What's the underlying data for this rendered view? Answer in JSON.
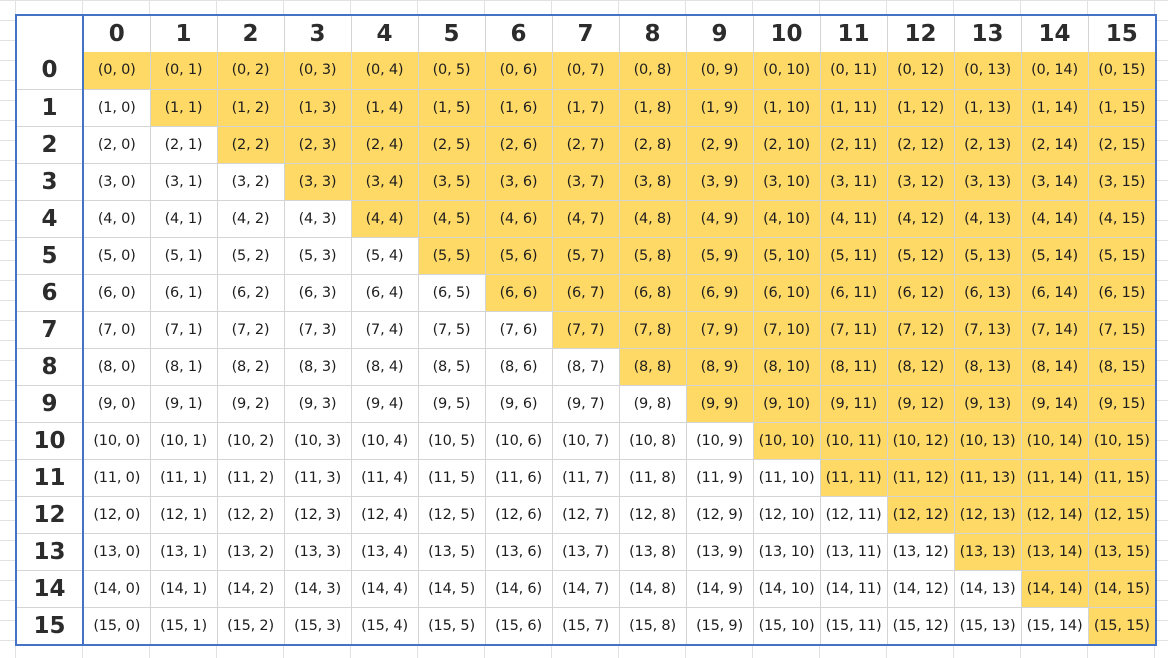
{
  "sheet": {
    "corner_label": "",
    "column_headers": [
      "0",
      "1",
      "2",
      "3",
      "4",
      "5",
      "6",
      "7",
      "8",
      "9",
      "10",
      "11",
      "12",
      "13",
      "14",
      "15"
    ],
    "rows": [
      {
        "header": "0",
        "cells": [
          "(0, 0)",
          "(0, 1)",
          "(0, 2)",
          "(0, 3)",
          "(0, 4)",
          "(0, 5)",
          "(0, 6)",
          "(0, 7)",
          "(0, 8)",
          "(0, 9)",
          "(0, 10)",
          "(0, 11)",
          "(0, 12)",
          "(0, 13)",
          "(0, 14)",
          "(0, 15)"
        ]
      },
      {
        "header": "1",
        "cells": [
          "(1, 0)",
          "(1, 1)",
          "(1, 2)",
          "(1, 3)",
          "(1, 4)",
          "(1, 5)",
          "(1, 6)",
          "(1, 7)",
          "(1, 8)",
          "(1, 9)",
          "(1, 10)",
          "(1, 11)",
          "(1, 12)",
          "(1, 13)",
          "(1, 14)",
          "(1, 15)"
        ]
      },
      {
        "header": "2",
        "cells": [
          "(2, 0)",
          "(2, 1)",
          "(2, 2)",
          "(2, 3)",
          "(2, 4)",
          "(2, 5)",
          "(2, 6)",
          "(2, 7)",
          "(2, 8)",
          "(2, 9)",
          "(2, 10)",
          "(2, 11)",
          "(2, 12)",
          "(2, 13)",
          "(2, 14)",
          "(2, 15)"
        ]
      },
      {
        "header": "3",
        "cells": [
          "(3, 0)",
          "(3, 1)",
          "(3, 2)",
          "(3, 3)",
          "(3, 4)",
          "(3, 5)",
          "(3, 6)",
          "(3, 7)",
          "(3, 8)",
          "(3, 9)",
          "(3, 10)",
          "(3, 11)",
          "(3, 12)",
          "(3, 13)",
          "(3, 14)",
          "(3, 15)"
        ]
      },
      {
        "header": "4",
        "cells": [
          "(4, 0)",
          "(4, 1)",
          "(4, 2)",
          "(4, 3)",
          "(4, 4)",
          "(4, 5)",
          "(4, 6)",
          "(4, 7)",
          "(4, 8)",
          "(4, 9)",
          "(4, 10)",
          "(4, 11)",
          "(4, 12)",
          "(4, 13)",
          "(4, 14)",
          "(4, 15)"
        ]
      },
      {
        "header": "5",
        "cells": [
          "(5, 0)",
          "(5, 1)",
          "(5, 2)",
          "(5, 3)",
          "(5, 4)",
          "(5, 5)",
          "(5, 6)",
          "(5, 7)",
          "(5, 8)",
          "(5, 9)",
          "(5, 10)",
          "(5, 11)",
          "(5, 12)",
          "(5, 13)",
          "(5, 14)",
          "(5, 15)"
        ]
      },
      {
        "header": "6",
        "cells": [
          "(6, 0)",
          "(6, 1)",
          "(6, 2)",
          "(6, 3)",
          "(6, 4)",
          "(6, 5)",
          "(6, 6)",
          "(6, 7)",
          "(6, 8)",
          "(6, 9)",
          "(6, 10)",
          "(6, 11)",
          "(6, 12)",
          "(6, 13)",
          "(6, 14)",
          "(6, 15)"
        ]
      },
      {
        "header": "7",
        "cells": [
          "(7, 0)",
          "(7, 1)",
          "(7, 2)",
          "(7, 3)",
          "(7, 4)",
          "(7, 5)",
          "(7, 6)",
          "(7, 7)",
          "(7, 8)",
          "(7, 9)",
          "(7, 10)",
          "(7, 11)",
          "(7, 12)",
          "(7, 13)",
          "(7, 14)",
          "(7, 15)"
        ]
      },
      {
        "header": "8",
        "cells": [
          "(8, 0)",
          "(8, 1)",
          "(8, 2)",
          "(8, 3)",
          "(8, 4)",
          "(8, 5)",
          "(8, 6)",
          "(8, 7)",
          "(8, 8)",
          "(8, 9)",
          "(8, 10)",
          "(8, 11)",
          "(8, 12)",
          "(8, 13)",
          "(8, 14)",
          "(8, 15)"
        ]
      },
      {
        "header": "9",
        "cells": [
          "(9, 0)",
          "(9, 1)",
          "(9, 2)",
          "(9, 3)",
          "(9, 4)",
          "(9, 5)",
          "(9, 6)",
          "(9, 7)",
          "(9, 8)",
          "(9, 9)",
          "(9, 10)",
          "(9, 11)",
          "(9, 12)",
          "(9, 13)",
          "(9, 14)",
          "(9, 15)"
        ]
      },
      {
        "header": "10",
        "cells": [
          "(10, 0)",
          "(10, 1)",
          "(10, 2)",
          "(10, 3)",
          "(10, 4)",
          "(10, 5)",
          "(10, 6)",
          "(10, 7)",
          "(10, 8)",
          "(10, 9)",
          "(10, 10)",
          "(10, 11)",
          "(10, 12)",
          "(10, 13)",
          "(10, 14)",
          "(10, 15)"
        ]
      },
      {
        "header": "11",
        "cells": [
          "(11, 0)",
          "(11, 1)",
          "(11, 2)",
          "(11, 3)",
          "(11, 4)",
          "(11, 5)",
          "(11, 6)",
          "(11, 7)",
          "(11, 8)",
          "(11, 9)",
          "(11, 10)",
          "(11, 11)",
          "(11, 12)",
          "(11, 13)",
          "(11, 14)",
          "(11, 15)"
        ]
      },
      {
        "header": "12",
        "cells": [
          "(12, 0)",
          "(12, 1)",
          "(12, 2)",
          "(12, 3)",
          "(12, 4)",
          "(12, 5)",
          "(12, 6)",
          "(12, 7)",
          "(12, 8)",
          "(12, 9)",
          "(12, 10)",
          "(12, 11)",
          "(12, 12)",
          "(12, 13)",
          "(12, 14)",
          "(12, 15)"
        ]
      },
      {
        "header": "13",
        "cells": [
          "(13, 0)",
          "(13, 1)",
          "(13, 2)",
          "(13, 3)",
          "(13, 4)",
          "(13, 5)",
          "(13, 6)",
          "(13, 7)",
          "(13, 8)",
          "(13, 9)",
          "(13, 10)",
          "(13, 11)",
          "(13, 12)",
          "(13, 13)",
          "(13, 14)",
          "(13, 15)"
        ]
      },
      {
        "header": "14",
        "cells": [
          "(14, 0)",
          "(14, 1)",
          "(14, 2)",
          "(14, 3)",
          "(14, 4)",
          "(14, 5)",
          "(14, 6)",
          "(14, 7)",
          "(14, 8)",
          "(14, 9)",
          "(14, 10)",
          "(14, 11)",
          "(14, 12)",
          "(14, 13)",
          "(14, 14)",
          "(14, 15)"
        ]
      },
      {
        "header": "15",
        "cells": [
          "(15, 0)",
          "(15, 1)",
          "(15, 2)",
          "(15, 3)",
          "(15, 4)",
          "(15, 5)",
          "(15, 6)",
          "(15, 7)",
          "(15, 8)",
          "(15, 9)",
          "(15, 10)",
          "(15, 11)",
          "(15, 12)",
          "(15, 13)",
          "(15, 14)",
          "(15, 15)"
        ]
      }
    ]
  },
  "colors": {
    "highlight_fill": "#ffd966",
    "frame_border": "#4472c4",
    "gridline": "#d4d4d4"
  }
}
